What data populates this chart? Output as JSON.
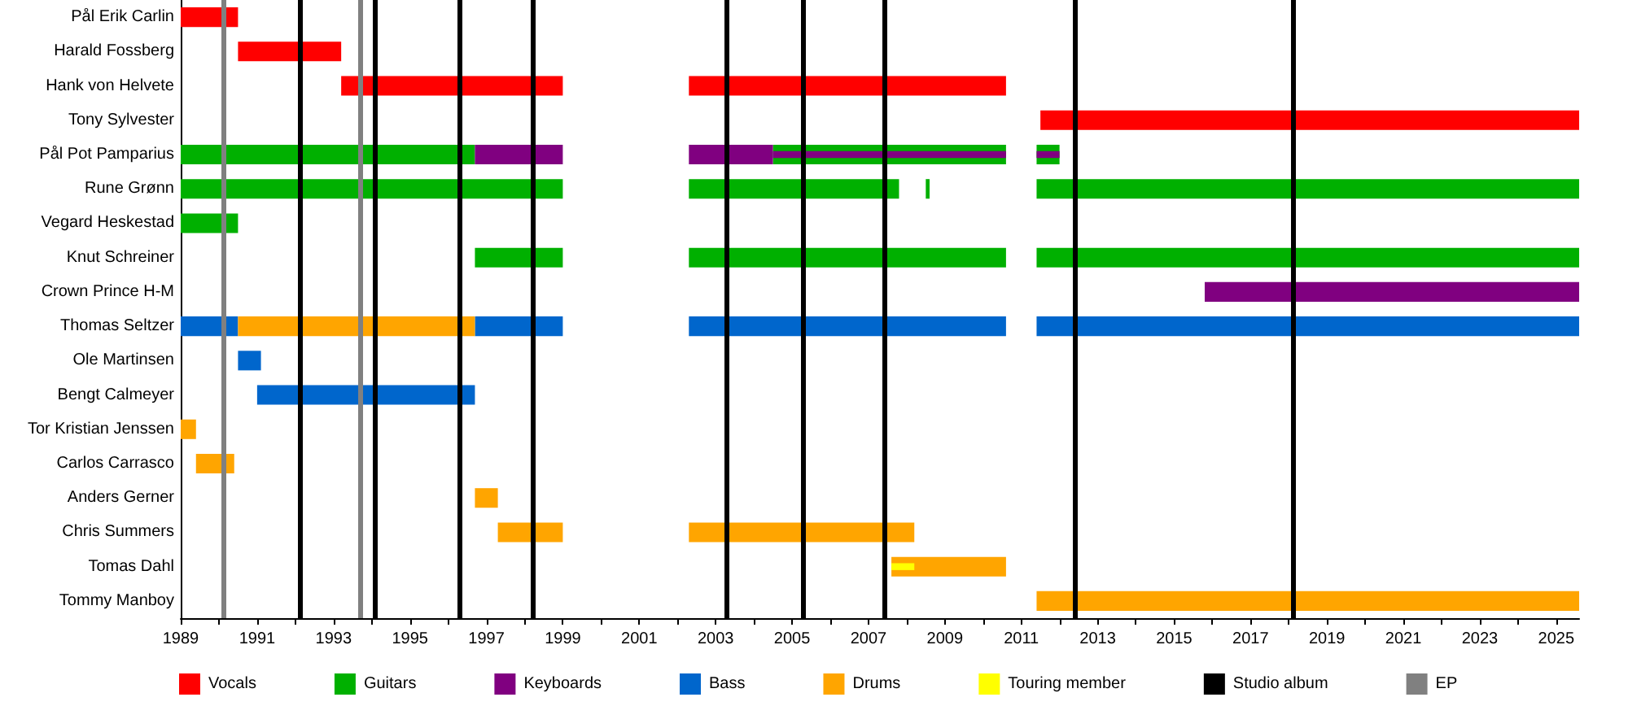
{
  "chart_data": {
    "type": "bar",
    "orientation": "horizontal",
    "legend": "bottom",
    "grid": false,
    "categories": [
      "Pål Erik Carlin",
      "Harald Fossberg",
      "Hank von Helvete",
      "Tony Sylvester",
      "Pål Pot Pamparius",
      "Rune Grønn",
      "Vegard Heskestad",
      "Knut Schreiner",
      "Crown Prince H-M",
      "Thomas Seltzer",
      "Ole Martinsen",
      "Bengt Calmeyer",
      "Tor Kristian Jenssen",
      "Carlos Carrasco",
      "Anders Gerner",
      "Chris Summers",
      "Tomas Dahl",
      "Tommy Manboy"
    ],
    "xlim": [
      1989,
      2025.6
    ],
    "xticks": [
      1989,
      {
        "value": 1990,
        "label": null
      },
      1991,
      {
        "value": 1992,
        "label": null
      },
      1993,
      {
        "value": 1994,
        "label": null
      },
      1995,
      {
        "value": 1996,
        "label": null
      },
      1997,
      {
        "value": 1998,
        "label": null
      },
      1999,
      {
        "value": 2000,
        "label": null
      },
      2001,
      {
        "value": 2002,
        "label": null
      },
      2003,
      {
        "value": 2004,
        "label": null
      },
      2005,
      {
        "value": 2006,
        "label": null
      },
      2007,
      {
        "value": 2008,
        "label": null
      },
      2009,
      {
        "value": 2010,
        "label": null
      },
      2011,
      {
        "value": 2012,
        "label": null
      },
      2013,
      {
        "value": 2014,
        "label": null
      },
      2015,
      {
        "value": 2016,
        "label": null
      },
      2017,
      {
        "value": 2018,
        "label": null
      },
      2019,
      {
        "value": 2020,
        "label": null
      },
      2021,
      {
        "value": 2022,
        "label": null
      },
      2023,
      {
        "value": 2024,
        "label": null
      },
      2025
    ],
    "series": [
      {
        "name": "Vocals",
        "color": "#ff0000",
        "base": [
          1989,
          1990.5,
          1993.2,
          2011.5,
          null,
          null,
          null,
          null,
          null,
          null,
          null,
          null,
          null,
          null,
          null,
          null,
          null,
          null
        ],
        "values": [
          1.5,
          2.7,
          5.8,
          14.1,
          null,
          null,
          null,
          null,
          null,
          null,
          null,
          null,
          null,
          null,
          null,
          null,
          null,
          null
        ]
      },
      {
        "color": "#ff0000",
        "base": [
          null,
          null,
          2002.3,
          null,
          null,
          null,
          null,
          null,
          null,
          null,
          null,
          null,
          null,
          null,
          null,
          null,
          null,
          null
        ],
        "values": [
          null,
          null,
          8.3,
          null,
          null,
          null,
          null,
          null,
          null,
          null,
          null,
          null,
          null,
          null,
          null,
          null,
          null,
          null
        ]
      },
      {
        "name": "Guitars",
        "color": "#00b000",
        "base": [
          null,
          null,
          null,
          null,
          1989,
          1989,
          1989,
          1996.7,
          null,
          null,
          null,
          null,
          null,
          null,
          null,
          null,
          null,
          null
        ],
        "values": [
          null,
          null,
          null,
          null,
          7.7,
          10,
          1.5,
          2.3,
          null,
          null,
          null,
          null,
          null,
          null,
          null,
          null,
          null,
          null
        ]
      },
      {
        "color": "#00b000",
        "base": [
          null,
          null,
          null,
          null,
          2004.5,
          2002.3,
          null,
          2002.3,
          null,
          null,
          null,
          null,
          null,
          null,
          null,
          null,
          null,
          null
        ],
        "values": [
          null,
          null,
          null,
          null,
          6.1,
          5.5,
          null,
          8.3,
          null,
          null,
          null,
          null,
          null,
          null,
          null,
          null,
          null,
          null
        ]
      },
      {
        "color": "#00b000",
        "base": [
          null,
          null,
          null,
          null,
          2011.4,
          2008.5,
          null,
          2011.4,
          null,
          null,
          null,
          null,
          null,
          null,
          null,
          null,
          null,
          null
        ],
        "values": [
          null,
          null,
          null,
          null,
          0.6,
          0.1,
          null,
          14.2,
          null,
          null,
          null,
          null,
          null,
          null,
          null,
          null,
          null,
          null
        ]
      },
      {
        "color": "#00b000",
        "base": [
          null,
          null,
          null,
          null,
          null,
          2011.4,
          null,
          null,
          null,
          null,
          null,
          null,
          null,
          null,
          null,
          null,
          null,
          null
        ],
        "values": [
          null,
          null,
          null,
          null,
          null,
          14.2,
          null,
          null,
          null,
          null,
          null,
          null,
          null,
          null,
          null,
          null,
          null,
          null
        ]
      },
      {
        "name": "Keyboards",
        "color": "#800080",
        "base": [
          null,
          null,
          null,
          null,
          1996.7,
          null,
          null,
          null,
          2015.8,
          null,
          null,
          null,
          null,
          null,
          null,
          null,
          null,
          null
        ],
        "values": [
          null,
          null,
          null,
          null,
          2.3,
          null,
          null,
          null,
          9.8,
          null,
          null,
          null,
          null,
          null,
          null,
          null,
          null,
          null
        ]
      },
      {
        "color": "#800080",
        "base": [
          null,
          null,
          null,
          null,
          2002.3,
          null,
          null,
          null,
          null,
          null,
          null,
          null,
          null,
          null,
          null,
          null,
          null,
          null
        ],
        "values": [
          null,
          null,
          null,
          null,
          2.2,
          null,
          null,
          null,
          null,
          null,
          null,
          null,
          null,
          null,
          null,
          null,
          null,
          null
        ]
      },
      {
        "color": "#800080",
        "base": [
          null,
          null,
          null,
          null,
          2004.5,
          null,
          null,
          null,
          null,
          null,
          null,
          null,
          null,
          null,
          null,
          null,
          null,
          null
        ],
        "values": [
          null,
          null,
          null,
          null,
          6.1,
          null,
          null,
          null,
          null,
          null,
          null,
          null,
          null,
          null,
          null,
          null,
          null,
          null
        ]
      },
      {
        "color": "#800080",
        "base": [
          null,
          null,
          null,
          null,
          2011.4,
          null,
          null,
          null,
          null,
          null,
          null,
          null,
          null,
          null,
          null,
          null,
          null,
          null
        ],
        "values": [
          null,
          null,
          null,
          null,
          0.6,
          null,
          null,
          null,
          null,
          null,
          null,
          null,
          null,
          null,
          null,
          null,
          null,
          null
        ]
      },
      {
        "name": "Bass",
        "color": "#0066cc",
        "base": [
          null,
          null,
          null,
          null,
          null,
          null,
          null,
          null,
          null,
          1989,
          1990.5,
          1991,
          null,
          null,
          null,
          null,
          null,
          null
        ],
        "values": [
          null,
          null,
          null,
          null,
          null,
          null,
          null,
          null,
          null,
          1.5,
          0.6,
          5.7,
          null,
          null,
          null,
          null,
          null,
          null
        ]
      },
      {
        "color": "#0066cc",
        "base": [
          null,
          null,
          null,
          null,
          null,
          null,
          null,
          null,
          null,
          1996.7,
          null,
          null,
          null,
          null,
          null,
          null,
          null,
          null
        ],
        "values": [
          null,
          null,
          null,
          null,
          null,
          null,
          null,
          null,
          null,
          2.3,
          null,
          null,
          null,
          null,
          null,
          null,
          null,
          null
        ]
      },
      {
        "color": "#0066cc",
        "base": [
          null,
          null,
          null,
          null,
          null,
          null,
          null,
          null,
          null,
          2002.3,
          null,
          null,
          null,
          null,
          null,
          null,
          null,
          null
        ],
        "values": [
          null,
          null,
          null,
          null,
          null,
          null,
          null,
          null,
          null,
          8.3,
          null,
          null,
          null,
          null,
          null,
          null,
          null,
          null
        ]
      },
      {
        "color": "#0066cc",
        "base": [
          null,
          null,
          null,
          null,
          null,
          null,
          null,
          null,
          null,
          2011.4,
          null,
          null,
          null,
          null,
          null,
          null,
          null,
          null
        ],
        "values": [
          null,
          null,
          null,
          null,
          null,
          null,
          null,
          null,
          null,
          14.2,
          null,
          null,
          null,
          null,
          null,
          null,
          null,
          null
        ]
      },
      {
        "name": "Drums",
        "color": "#ffa500",
        "base": [
          null,
          null,
          null,
          null,
          null,
          null,
          null,
          null,
          null,
          1990.5,
          null,
          null,
          1989,
          1989.4,
          1996.7,
          1997.3,
          2007.6,
          2011.4
        ],
        "values": [
          null,
          null,
          null,
          null,
          null,
          null,
          null,
          null,
          null,
          6.2,
          null,
          null,
          0.4,
          1,
          0.6,
          1.7,
          3,
          14.2
        ]
      },
      {
        "color": "#ffa500",
        "base": [
          null,
          null,
          null,
          null,
          null,
          null,
          null,
          null,
          null,
          null,
          null,
          null,
          null,
          null,
          null,
          2002.3,
          null,
          null
        ],
        "values": [
          null,
          null,
          null,
          null,
          null,
          null,
          null,
          null,
          null,
          null,
          null,
          null,
          null,
          null,
          null,
          5.9,
          null,
          null
        ]
      },
      {
        "name": "Touring member",
        "color": "#ffff00",
        "base": [
          null,
          null,
          null,
          null,
          null,
          null,
          null,
          null,
          null,
          null,
          null,
          null,
          null,
          null,
          null,
          null,
          2007.6,
          null
        ],
        "values": [
          null,
          null,
          null,
          null,
          null,
          null,
          null,
          null,
          null,
          null,
          null,
          null,
          null,
          null,
          null,
          null,
          0.6,
          null
        ]
      }
    ],
    "ref_lines": [
      {
        "axis": "x",
        "value": 1992.1,
        "label": "Studio album",
        "color": "#000000"
      },
      {
        "axis": "x",
        "value": 1994.1,
        "color": "#000000"
      },
      {
        "axis": "x",
        "value": 1996.3,
        "color": "#000000"
      },
      {
        "axis": "x",
        "value": 1998.2,
        "color": "#000000"
      },
      {
        "axis": "x",
        "value": 2003.3,
        "color": "#000000"
      },
      {
        "axis": "x",
        "value": 2005.3,
        "color": "#000000"
      },
      {
        "axis": "x",
        "value": 2007.4,
        "color": "#000000"
      },
      {
        "axis": "x",
        "value": 2012.4,
        "color": "#000000"
      },
      {
        "axis": "x",
        "value": 2018.1,
        "color": "#000000"
      },
      {
        "axis": "x",
        "value": 1990.1,
        "label": "EP",
        "color": "#808080"
      },
      {
        "axis": "x",
        "value": 1993.7,
        "color": "#808080"
      }
    ]
  }
}
